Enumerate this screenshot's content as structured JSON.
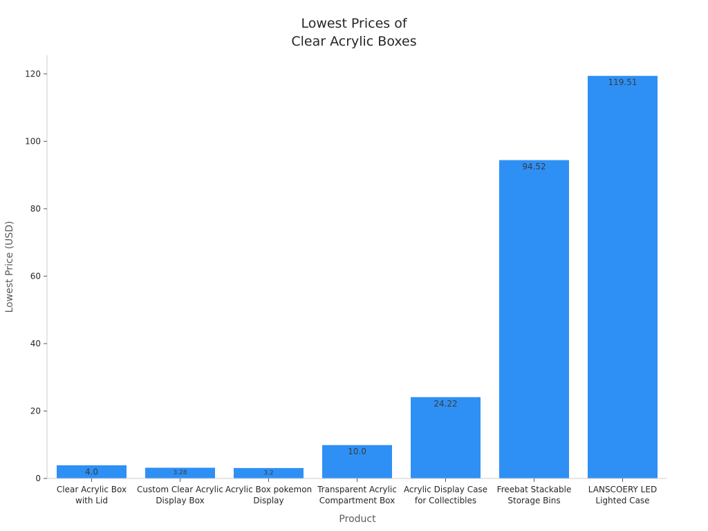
{
  "chart_data": {
    "type": "bar",
    "title_lines": [
      "Lowest Prices of",
      "Clear Acrylic Boxes"
    ],
    "xlabel": "Product",
    "ylabel": "Lowest Price (USD)",
    "categories": [
      [
        "Clear Acrylic Box",
        "with Lid"
      ],
      [
        "Custom Clear Acrylic",
        "Display Box"
      ],
      [
        "Acrylic Box pokemon",
        "Display"
      ],
      [
        "Transparent Acrylic",
        "Compartment Box"
      ],
      [
        "Acrylic Display Case",
        "for Collectibles"
      ],
      [
        "Freebat Stackable",
        "Storage Bins"
      ],
      [
        "LANSCOERY LED",
        "Lighted Case"
      ]
    ],
    "values": [
      4.0,
      3.28,
      3.2,
      10.0,
      24.22,
      94.52,
      119.51
    ],
    "value_labels": [
      "4.0",
      "3.28",
      "3.2",
      "10.0",
      "24.22",
      "94.52",
      "119.51"
    ],
    "y_ticks": [
      0,
      20,
      40,
      60,
      80,
      100,
      120
    ],
    "ylim": [
      0,
      125.5
    ],
    "bar_color": "#2e90f5",
    "grid": false,
    "legend": "none"
  }
}
